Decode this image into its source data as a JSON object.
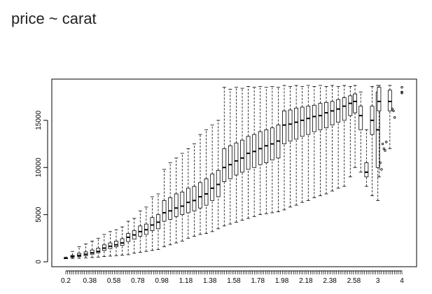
{
  "page": {
    "heading": "price ~ carat"
  },
  "chart_data": {
    "type": "boxplot",
    "title": "",
    "xlabel": "",
    "ylabel": "",
    "ylim": [
      0,
      19000
    ],
    "y_ticks": [
      0,
      5000,
      10000,
      15000
    ],
    "x_tick_labels": [
      "0.2",
      "0.38",
      "0.58",
      "0.78",
      "0.98",
      "1.18",
      "1.38",
      "1.58",
      "1.78",
      "1.98",
      "2.18",
      "2.38",
      "2.58",
      "3",
      "4"
    ],
    "boxes": [
      {
        "x": 0.2,
        "lo": 330,
        "q1": 350,
        "med": 370,
        "q3": 400,
        "hi": 500
      },
      {
        "x": 0.25,
        "lo": 350,
        "q1": 480,
        "med": 560,
        "q3": 680,
        "hi": 1100
      },
      {
        "x": 0.3,
        "lo": 380,
        "q1": 560,
        "med": 680,
        "q3": 900,
        "hi": 1600
      },
      {
        "x": 0.35,
        "lo": 420,
        "q1": 650,
        "med": 800,
        "q3": 1050,
        "hi": 1900
      },
      {
        "x": 0.4,
        "lo": 450,
        "q1": 800,
        "med": 950,
        "q3": 1250,
        "hi": 2200
      },
      {
        "x": 0.45,
        "lo": 500,
        "q1": 950,
        "med": 1100,
        "q3": 1450,
        "hi": 2500
      },
      {
        "x": 0.5,
        "lo": 550,
        "q1": 1200,
        "med": 1450,
        "q3": 1800,
        "hi": 2900
      },
      {
        "x": 0.55,
        "lo": 600,
        "q1": 1400,
        "med": 1650,
        "q3": 2000,
        "hi": 3200
      },
      {
        "x": 0.6,
        "lo": 650,
        "q1": 1600,
        "med": 1800,
        "q3": 2200,
        "hi": 3400
      },
      {
        "x": 0.65,
        "lo": 700,
        "q1": 1750,
        "med": 2000,
        "q3": 2450,
        "hi": 3700
      },
      {
        "x": 0.7,
        "lo": 750,
        "q1": 2150,
        "med": 2600,
        "q3": 3000,
        "hi": 4300
      },
      {
        "x": 0.75,
        "lo": 900,
        "q1": 2400,
        "med": 2850,
        "q3": 3300,
        "hi": 4600
      },
      {
        "x": 0.8,
        "lo": 1000,
        "q1": 2700,
        "med": 3200,
        "q3": 3800,
        "hi": 5400
      },
      {
        "x": 0.85,
        "lo": 1100,
        "q1": 2900,
        "med": 3400,
        "q3": 4000,
        "hi": 5800
      },
      {
        "x": 0.9,
        "lo": 1200,
        "q1": 3300,
        "med": 3900,
        "q3": 4700,
        "hi": 6900
      },
      {
        "x": 0.95,
        "lo": 1300,
        "q1": 3500,
        "med": 4200,
        "q3": 5000,
        "hi": 7200
      },
      {
        "x": 1.0,
        "lo": 1600,
        "q1": 4300,
        "med": 5200,
        "q3": 6500,
        "hi": 9800
      },
      {
        "x": 1.05,
        "lo": 1800,
        "q1": 4500,
        "med": 5400,
        "q3": 6800,
        "hi": 10500
      },
      {
        "x": 1.1,
        "lo": 2000,
        "q1": 4800,
        "med": 5700,
        "q3": 7200,
        "hi": 11000
      },
      {
        "x": 1.15,
        "lo": 2200,
        "q1": 5000,
        "med": 5900,
        "q3": 7400,
        "hi": 11500
      },
      {
        "x": 1.2,
        "lo": 2500,
        "q1": 5200,
        "med": 6300,
        "q3": 7800,
        "hi": 12000
      },
      {
        "x": 1.25,
        "lo": 2700,
        "q1": 5400,
        "med": 6500,
        "q3": 8000,
        "hi": 12500
      },
      {
        "x": 1.3,
        "lo": 2900,
        "q1": 5700,
        "med": 6900,
        "q3": 8400,
        "hi": 13500
      },
      {
        "x": 1.35,
        "lo": 3000,
        "q1": 6000,
        "med": 7200,
        "q3": 8800,
        "hi": 14000
      },
      {
        "x": 1.4,
        "lo": 3200,
        "q1": 6500,
        "med": 7800,
        "q3": 9300,
        "hi": 14500
      },
      {
        "x": 1.45,
        "lo": 3500,
        "q1": 6900,
        "med": 8200,
        "q3": 9700,
        "hi": 15000
      },
      {
        "x": 1.5,
        "lo": 3800,
        "q1": 8500,
        "med": 10000,
        "q3": 12000,
        "hi": 18500
      },
      {
        "x": 1.55,
        "lo": 4000,
        "q1": 8800,
        "med": 10300,
        "q3": 12300,
        "hi": 18300
      },
      {
        "x": 1.6,
        "lo": 4200,
        "q1": 9200,
        "med": 10700,
        "q3": 12600,
        "hi": 18500
      },
      {
        "x": 1.65,
        "lo": 4400,
        "q1": 9500,
        "med": 11000,
        "q3": 12900,
        "hi": 18400
      },
      {
        "x": 1.7,
        "lo": 4600,
        "q1": 9800,
        "med": 11500,
        "q3": 13300,
        "hi": 18600
      },
      {
        "x": 1.75,
        "lo": 4800,
        "q1": 10000,
        "med": 11700,
        "q3": 13500,
        "hi": 18500
      },
      {
        "x": 1.8,
        "lo": 5000,
        "q1": 10300,
        "med": 12000,
        "q3": 13800,
        "hi": 18600
      },
      {
        "x": 1.85,
        "lo": 5100,
        "q1": 10500,
        "med": 12300,
        "q3": 14000,
        "hi": 18500
      },
      {
        "x": 1.9,
        "lo": 5200,
        "q1": 10800,
        "med": 12500,
        "q3": 14200,
        "hi": 18600
      },
      {
        "x": 1.95,
        "lo": 5300,
        "q1": 11000,
        "med": 12800,
        "q3": 14500,
        "hi": 18500
      },
      {
        "x": 2.0,
        "lo": 5500,
        "q1": 12500,
        "med": 14500,
        "q3": 16000,
        "hi": 18700
      },
      {
        "x": 2.05,
        "lo": 5800,
        "q1": 12800,
        "med": 14600,
        "q3": 16100,
        "hi": 18600
      },
      {
        "x": 2.1,
        "lo": 6000,
        "q1": 13000,
        "med": 14800,
        "q3": 16300,
        "hi": 18700
      },
      {
        "x": 2.15,
        "lo": 6300,
        "q1": 13300,
        "med": 15000,
        "q3": 16400,
        "hi": 18600
      },
      {
        "x": 2.2,
        "lo": 6500,
        "q1": 13500,
        "med": 15200,
        "q3": 16500,
        "hi": 18700
      },
      {
        "x": 2.25,
        "lo": 6800,
        "q1": 13800,
        "med": 15400,
        "q3": 16600,
        "hi": 18600
      },
      {
        "x": 2.3,
        "lo": 7000,
        "q1": 14000,
        "med": 15500,
        "q3": 16800,
        "hi": 18700
      },
      {
        "x": 2.35,
        "lo": 7200,
        "q1": 14200,
        "med": 15800,
        "q3": 16900,
        "hi": 18600
      },
      {
        "x": 2.4,
        "lo": 7500,
        "q1": 14500,
        "med": 16000,
        "q3": 17000,
        "hi": 18700
      },
      {
        "x": 2.45,
        "lo": 7800,
        "q1": 14800,
        "med": 16200,
        "q3": 17200,
        "hi": 18600
      },
      {
        "x": 2.5,
        "lo": 8000,
        "q1": 15000,
        "med": 16500,
        "q3": 17400,
        "hi": 18700
      },
      {
        "x": 2.55,
        "lo": 9000,
        "q1": 15500,
        "med": 16800,
        "q3": 17600,
        "hi": 18600
      },
      {
        "x": 2.6,
        "lo": 10000,
        "q1": 15800,
        "med": 17000,
        "q3": 17800,
        "hi": 18700
      },
      {
        "x": 2.7,
        "lo": 9500,
        "q1": 14000,
        "med": 15500,
        "q3": 16500,
        "hi": 18000
      },
      {
        "x": 2.8,
        "lo": 8000,
        "q1": 9000,
        "med": 9500,
        "q3": 10500,
        "hi": 14000
      },
      {
        "x": 2.9,
        "lo": 7000,
        "q1": 13500,
        "med": 15000,
        "q3": 16500,
        "hi": 18600
      },
      {
        "x": 3.0,
        "lo": 6500,
        "q1": 10000,
        "med": 14000,
        "q3": 18000,
        "hi": 18700
      },
      {
        "x": 3.05,
        "lo": 9000,
        "q1": 16000,
        "med": 17000,
        "q3": 18500,
        "hi": 18700
      },
      {
        "x": 3.5,
        "lo": 12000,
        "q1": 16000,
        "med": 17000,
        "q3": 18200,
        "hi": 18700
      }
    ],
    "outliers": [
      {
        "x": 3.1,
        "y": 10500
      },
      {
        "x": 3.15,
        "y": 9800
      },
      {
        "x": 3.2,
        "y": 12500
      },
      {
        "x": 3.25,
        "y": 12000
      },
      {
        "x": 3.3,
        "y": 11800
      },
      {
        "x": 3.35,
        "y": 12700
      },
      {
        "x": 3.6,
        "y": 16200
      },
      {
        "x": 3.65,
        "y": 16000
      },
      {
        "x": 3.7,
        "y": 15300
      },
      {
        "x": 4.0,
        "y": 18500
      },
      {
        "x": 4.05,
        "y": 18000
      },
      {
        "x": 4.1,
        "y": 17900
      }
    ]
  }
}
